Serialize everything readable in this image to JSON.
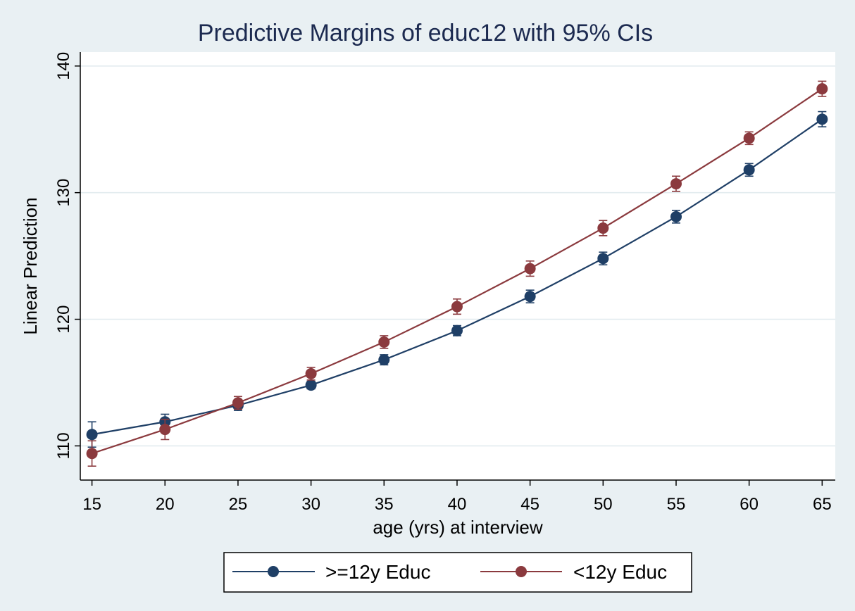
{
  "chart_data": {
    "type": "line",
    "title": "Predictive Margins of educ12 with 95% CIs",
    "xlabel": "age (yrs) at interview",
    "ylabel": "Linear Prediction",
    "x": [
      15,
      20,
      25,
      30,
      35,
      40,
      45,
      50,
      55,
      60,
      65
    ],
    "xlim": [
      14.2,
      65.9
    ],
    "ylim": [
      107.3,
      141.1
    ],
    "xticks": [
      "15",
      "20",
      "25",
      "30",
      "35",
      "40",
      "45",
      "50",
      "55",
      "60",
      "65"
    ],
    "yticks": [
      "110",
      "120",
      "130",
      "140"
    ],
    "grid": true,
    "legend_position": "bottom",
    "series": [
      {
        "name": ">=12y Educ",
        "color": "#1f3f66",
        "values": [
          110.9,
          111.9,
          113.2,
          114.8,
          116.8,
          119.1,
          121.8,
          124.8,
          128.1,
          131.8,
          135.8
        ],
        "ci_low": [
          109.9,
          111.3,
          112.8,
          114.5,
          116.4,
          118.7,
          121.3,
          124.3,
          127.6,
          131.3,
          135.2
        ],
        "ci_high": [
          111.9,
          112.5,
          113.6,
          115.1,
          117.2,
          119.5,
          122.3,
          125.3,
          128.6,
          132.3,
          136.4
        ]
      },
      {
        "name": "<12y Educ",
        "color": "#8b3a3e",
        "values": [
          109.4,
          111.3,
          113.4,
          115.7,
          118.2,
          121.0,
          124.0,
          127.2,
          130.7,
          134.3,
          138.2
        ],
        "ci_low": [
          108.4,
          110.5,
          112.9,
          115.2,
          117.7,
          120.4,
          123.4,
          126.6,
          130.1,
          133.8,
          137.6
        ],
        "ci_high": [
          110.4,
          112.1,
          113.9,
          116.2,
          118.7,
          121.6,
          124.6,
          127.8,
          131.3,
          134.8,
          138.8
        ]
      }
    ]
  }
}
